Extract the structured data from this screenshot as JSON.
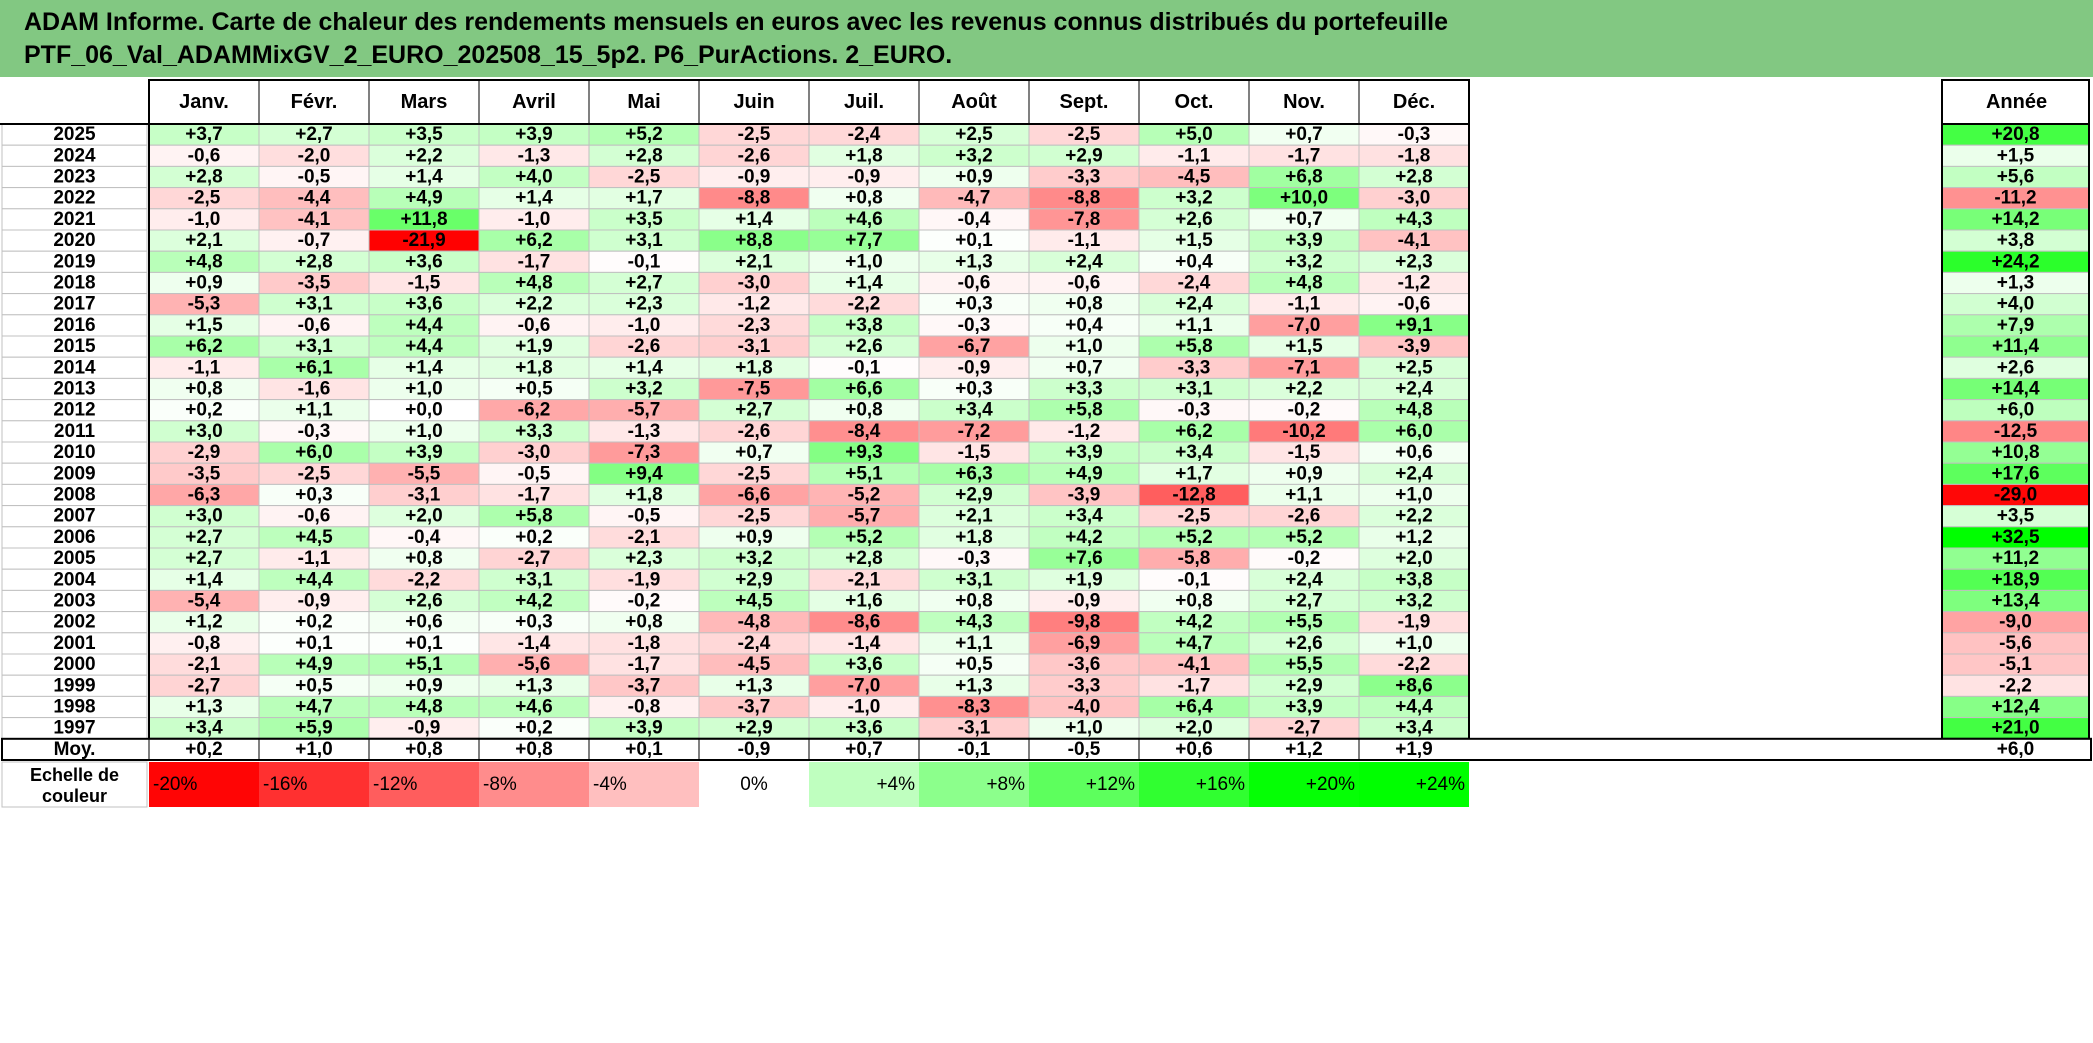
{
  "title": {
    "line1": "ADAM Informe. Carte de chaleur des rendements mensuels en euros avec les revenus connus distribués du portefeuille",
    "line2": "PTF_06_Val_ADAMMixGV_2_EURO_202508_15_5p2. P6_PurActions. 2_EURO."
  },
  "chart_data": {
    "type": "heatmap",
    "columns": [
      "Janv.",
      "Févr.",
      "Mars",
      "Avril",
      "Mai",
      "Juin",
      "Juil.",
      "Août",
      "Sept.",
      "Oct.",
      "Nov.",
      "Déc."
    ],
    "year_column_label": "Année",
    "rows": [
      {
        "year": "2025",
        "values": [
          "+3,7",
          "+2,7",
          "+3,5",
          "+3,9",
          "+5,2",
          "-2,5",
          "-2,4",
          "+2,5",
          "-2,5",
          "+5,0",
          "+0,7",
          "-0,3"
        ],
        "annual": "+20,8"
      },
      {
        "year": "2024",
        "values": [
          "-0,6",
          "-2,0",
          "+2,2",
          "-1,3",
          "+2,8",
          "-2,6",
          "+1,8",
          "+3,2",
          "+2,9",
          "-1,1",
          "-1,7",
          "-1,8"
        ],
        "annual": "+1,5"
      },
      {
        "year": "2023",
        "values": [
          "+2,8",
          "-0,5",
          "+1,4",
          "+4,0",
          "-2,5",
          "-0,9",
          "-0,9",
          "+0,9",
          "-3,3",
          "-4,5",
          "+6,8",
          "+2,8"
        ],
        "annual": "+5,6"
      },
      {
        "year": "2022",
        "values": [
          "-2,5",
          "-4,4",
          "+4,9",
          "+1,4",
          "+1,7",
          "-8,8",
          "+0,8",
          "-4,7",
          "-8,8",
          "+3,2",
          "+10,0",
          "-3,0"
        ],
        "annual": "-11,2"
      },
      {
        "year": "2021",
        "values": [
          "-1,0",
          "-4,1",
          "+11,8",
          "-1,0",
          "+3,5",
          "+1,4",
          "+4,6",
          "-0,4",
          "-7,8",
          "+2,6",
          "+0,7",
          "+4,3"
        ],
        "annual": "+14,2"
      },
      {
        "year": "2020",
        "values": [
          "+2,1",
          "-0,7",
          "-21,9",
          "+6,2",
          "+3,1",
          "+8,8",
          "+7,7",
          "+0,1",
          "-1,1",
          "+1,5",
          "+3,9",
          "-4,1"
        ],
        "annual": "+3,8"
      },
      {
        "year": "2019",
        "values": [
          "+4,8",
          "+2,8",
          "+3,6",
          "-1,7",
          "-0,1",
          "+2,1",
          "+1,0",
          "+1,3",
          "+2,4",
          "+0,4",
          "+3,2",
          "+2,3"
        ],
        "annual": "+24,2"
      },
      {
        "year": "2018",
        "values": [
          "+0,9",
          "-3,5",
          "-1,5",
          "+4,8",
          "+2,7",
          "-3,0",
          "+1,4",
          "-0,6",
          "-0,6",
          "-2,4",
          "+4,8",
          "-1,2"
        ],
        "annual": "+1,3"
      },
      {
        "year": "2017",
        "values": [
          "-5,3",
          "+3,1",
          "+3,6",
          "+2,2",
          "+2,3",
          "-1,2",
          "-2,2",
          "+0,3",
          "+0,8",
          "+2,4",
          "-1,1",
          "-0,6"
        ],
        "annual": "+4,0"
      },
      {
        "year": "2016",
        "values": [
          "+1,5",
          "-0,6",
          "+4,4",
          "-0,6",
          "-1,0",
          "-2,3",
          "+3,8",
          "-0,3",
          "+0,4",
          "+1,1",
          "-7,0",
          "+9,1"
        ],
        "annual": "+7,9"
      },
      {
        "year": "2015",
        "values": [
          "+6,2",
          "+3,1",
          "+4,4",
          "+1,9",
          "-2,6",
          "-3,1",
          "+2,6",
          "-6,7",
          "+1,0",
          "+5,8",
          "+1,5",
          "-3,9"
        ],
        "annual": "+11,4"
      },
      {
        "year": "2014",
        "values": [
          "-1,1",
          "+6,1",
          "+1,4",
          "+1,8",
          "+1,4",
          "+1,8",
          "-0,1",
          "-0,9",
          "+0,7",
          "-3,3",
          "-7,1",
          "+2,5"
        ],
        "annual": "+2,6"
      },
      {
        "year": "2013",
        "values": [
          "+0,8",
          "-1,6",
          "+1,0",
          "+0,5",
          "+3,2",
          "-7,5",
          "+6,6",
          "+0,3",
          "+3,3",
          "+3,1",
          "+2,2",
          "+2,4"
        ],
        "annual": "+14,4"
      },
      {
        "year": "2012",
        "values": [
          "+0,2",
          "+1,1",
          "+0,0",
          "-6,2",
          "-5,7",
          "+2,7",
          "+0,8",
          "+3,4",
          "+5,8",
          "-0,3",
          "-0,2",
          "+4,8"
        ],
        "annual": "+6,0"
      },
      {
        "year": "2011",
        "values": [
          "+3,0",
          "-0,3",
          "+1,0",
          "+3,3",
          "-1,3",
          "-2,6",
          "-8,4",
          "-7,2",
          "-1,2",
          "+6,2",
          "-10,2",
          "+6,0"
        ],
        "annual": "-12,5"
      },
      {
        "year": "2010",
        "values": [
          "-2,9",
          "+6,0",
          "+3,9",
          "-3,0",
          "-7,3",
          "+0,7",
          "+9,3",
          "-1,5",
          "+3,9",
          "+3,4",
          "-1,5",
          "+0,6"
        ],
        "annual": "+10,8"
      },
      {
        "year": "2009",
        "values": [
          "-3,5",
          "-2,5",
          "-5,5",
          "-0,5",
          "+9,4",
          "-2,5",
          "+5,1",
          "+6,3",
          "+4,9",
          "+1,7",
          "+0,9",
          "+2,4"
        ],
        "annual": "+17,6"
      },
      {
        "year": "2008",
        "values": [
          "-6,3",
          "+0,3",
          "-3,1",
          "-1,7",
          "+1,8",
          "-6,6",
          "-5,2",
          "+2,9",
          "-3,9",
          "-12,8",
          "+1,1",
          "+1,0"
        ],
        "annual": "-29,0"
      },
      {
        "year": "2007",
        "values": [
          "+3,0",
          "-0,6",
          "+2,0",
          "+5,8",
          "-0,5",
          "-2,5",
          "-5,7",
          "+2,1",
          "+3,4",
          "-2,5",
          "-2,6",
          "+2,2"
        ],
        "annual": "+3,5"
      },
      {
        "year": "2006",
        "values": [
          "+2,7",
          "+4,5",
          "-0,4",
          "+0,2",
          "-2,1",
          "+0,9",
          "+5,2",
          "+1,8",
          "+4,2",
          "+5,2",
          "+5,2",
          "+1,2"
        ],
        "annual": "+32,5"
      },
      {
        "year": "2005",
        "values": [
          "+2,7",
          "-1,1",
          "+0,8",
          "-2,7",
          "+2,3",
          "+3,2",
          "+2,8",
          "-0,3",
          "+7,6",
          "-5,8",
          "-0,2",
          "+2,0"
        ],
        "annual": "+11,2"
      },
      {
        "year": "2004",
        "values": [
          "+1,4",
          "+4,4",
          "-2,2",
          "+3,1",
          "-1,9",
          "+2,9",
          "-2,1",
          "+3,1",
          "+1,9",
          "-0,1",
          "+2,4",
          "+3,8"
        ],
        "annual": "+18,9"
      },
      {
        "year": "2003",
        "values": [
          "-5,4",
          "-0,9",
          "+2,6",
          "+4,2",
          "-0,2",
          "+4,5",
          "+1,6",
          "+0,8",
          "-0,9",
          "+0,8",
          "+2,7",
          "+3,2"
        ],
        "annual": "+13,4"
      },
      {
        "year": "2002",
        "values": [
          "+1,2",
          "+0,2",
          "+0,6",
          "+0,3",
          "+0,8",
          "-4,8",
          "-8,6",
          "+4,3",
          "-9,8",
          "+4,2",
          "+5,5",
          "-1,9"
        ],
        "annual": "-9,0"
      },
      {
        "year": "2001",
        "values": [
          "-0,8",
          "+0,1",
          "+0,1",
          "-1,4",
          "-1,8",
          "-2,4",
          "-1,4",
          "+1,1",
          "-6,9",
          "+4,7",
          "+2,6",
          "+1,0"
        ],
        "annual": "-5,6"
      },
      {
        "year": "2000",
        "values": [
          "-2,1",
          "+4,9",
          "+5,1",
          "-5,6",
          "-1,7",
          "-4,5",
          "+3,6",
          "+0,5",
          "-3,6",
          "-4,1",
          "+5,5",
          "-2,2"
        ],
        "annual": "-5,1"
      },
      {
        "year": "1999",
        "values": [
          "-2,7",
          "+0,5",
          "+0,9",
          "+1,3",
          "-3,7",
          "+1,3",
          "-7,0",
          "+1,3",
          "-3,3",
          "-1,7",
          "+2,9",
          "+8,6"
        ],
        "annual": "-2,2"
      },
      {
        "year": "1998",
        "values": [
          "+1,3",
          "+4,7",
          "+4,8",
          "+4,6",
          "-0,8",
          "-3,7",
          "-1,0",
          "-8,3",
          "-4,0",
          "+6,4",
          "+3,9",
          "+4,4"
        ],
        "annual": "+12,4"
      },
      {
        "year": "1997",
        "values": [
          "+3,4",
          "+5,9",
          "-0,9",
          "+0,2",
          "+3,9",
          "+2,9",
          "+3,6",
          "-3,1",
          "+1,0",
          "+2,0",
          "-2,7",
          "+3,4"
        ],
        "annual": "+21,0"
      }
    ],
    "mean_row": {
      "label": "Moy.",
      "values": [
        "+0,2",
        "+1,0",
        "+0,8",
        "+0,8",
        "+0,1",
        "-0,9",
        "+0,7",
        "-0,1",
        "-0,5",
        "+0,6",
        "+1,2",
        "+1,9"
      ],
      "annual": "+6,0"
    },
    "color_scale": {
      "label_line1": "Echelle de",
      "label_line2": "couleur",
      "stops": [
        "-20%",
        "-16%",
        "-12%",
        "-8%",
        "-4%",
        "0%",
        "+4%",
        "+8%",
        "+12%",
        "+16%",
        "+20%",
        "+24%"
      ],
      "stop_values": [
        -20,
        -16,
        -12,
        -8,
        -4,
        0,
        4,
        8,
        12,
        16,
        20,
        24
      ]
    },
    "colors": {
      "negative_max": "#ff0000",
      "neutral": "#ffffff",
      "positive_max": "#00ff00",
      "grid": "#c0c0c0",
      "border": "#000000"
    }
  }
}
